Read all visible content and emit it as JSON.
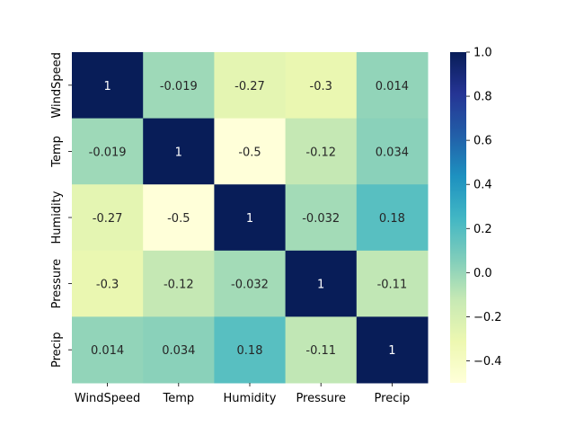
{
  "chart_data": {
    "type": "heatmap",
    "x_labels": [
      "WindSpeed",
      "Temp",
      "Humidity",
      "Pressure",
      "Precip"
    ],
    "y_labels": [
      "WindSpeed",
      "Temp",
      "Humidity",
      "Pressure",
      "Precip"
    ],
    "matrix": [
      [
        1,
        -0.019,
        -0.27,
        -0.3,
        0.014
      ],
      [
        -0.019,
        1,
        -0.5,
        -0.12,
        0.034
      ],
      [
        -0.27,
        -0.5,
        1,
        -0.032,
        0.18
      ],
      [
        -0.3,
        -0.12,
        -0.032,
        1,
        -0.11
      ],
      [
        0.014,
        0.034,
        0.18,
        -0.11,
        1
      ]
    ],
    "cell_labels": [
      [
        "1",
        "-0.019",
        "-0.27",
        "-0.3",
        "0.014"
      ],
      [
        "-0.019",
        "1",
        "-0.5",
        "-0.12",
        "0.034"
      ],
      [
        "-0.27",
        "-0.5",
        "1",
        "-0.032",
        "0.18"
      ],
      [
        "-0.3",
        "-0.12",
        "-0.032",
        "1",
        "-0.11"
      ],
      [
        "0.014",
        "0.034",
        "0.18",
        "-0.11",
        "1"
      ]
    ],
    "colormap": "YlGnBu",
    "vmin": -0.5,
    "vmax": 1.0,
    "colorbar_ticks": [
      1.0,
      0.8,
      0.6,
      0.4,
      0.2,
      0.0,
      -0.2,
      -0.4
    ],
    "colorbar_tick_labels": [
      "1.0",
      "0.8",
      "0.6",
      "0.4",
      "0.2",
      "0.0",
      "−0.2",
      "−0.4"
    ],
    "title": "",
    "xlabel": "",
    "ylabel": ""
  }
}
